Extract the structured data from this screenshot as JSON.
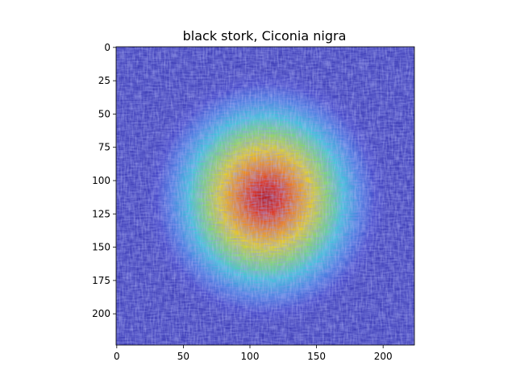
{
  "chart_data": {
    "type": "heatmap",
    "title": "black stork, Ciconia nigra",
    "xlabel": "",
    "ylabel": "",
    "xlim": [
      -0.5,
      223.5
    ],
    "ylim": [
      223.5,
      -0.5
    ],
    "x_ticks": [
      0,
      50,
      100,
      150,
      200
    ],
    "y_ticks": [
      0,
      25,
      50,
      75,
      100,
      125,
      150,
      175,
      200
    ],
    "grid": false,
    "colormap": "jet",
    "heat_center": {
      "x": 112,
      "y": 113
    },
    "heat_peak": 1.0
  }
}
